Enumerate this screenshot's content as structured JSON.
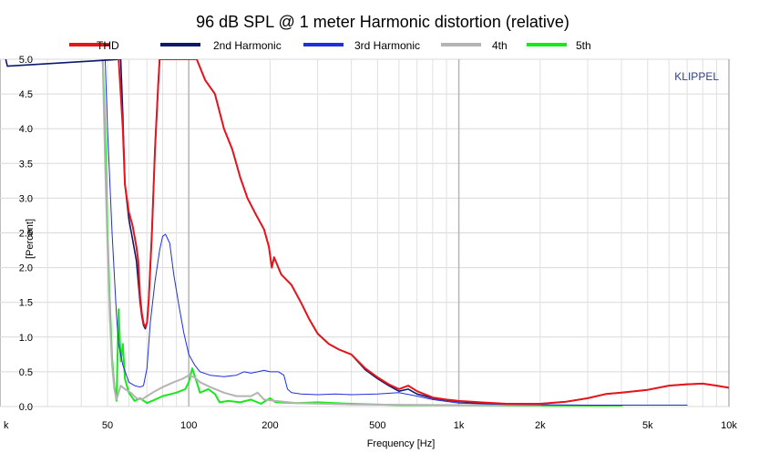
{
  "chart_data": {
    "type": "line",
    "title": "96 dB SPL @ 1 meter Harmonic distortion (relative)",
    "xlabel": "Frequency [Hz]",
    "ylabel": "[Percent]",
    "xscale": "log",
    "xlim": [
      20,
      10000
    ],
    "ylim": [
      0,
      5.0
    ],
    "grid": true,
    "legend_position": "top",
    "watermark": "KLIPPEL",
    "x_ticks": [
      {
        "value": 20,
        "label": "k"
      },
      {
        "value": 50,
        "label": "50"
      },
      {
        "value": 100,
        "label": "100"
      },
      {
        "value": 200,
        "label": "200"
      },
      {
        "value": 500,
        "label": "500"
      },
      {
        "value": 1000,
        "label": "1k"
      },
      {
        "value": 2000,
        "label": "2k"
      },
      {
        "value": 5000,
        "label": "5k"
      },
      {
        "value": 10000,
        "label": "10k"
      }
    ],
    "y_ticks": [
      {
        "value": 0,
        "label": "0.0"
      },
      {
        "value": 0.5,
        "label": "0.5"
      },
      {
        "value": 1.0,
        "label": "1.0"
      },
      {
        "value": 1.5,
        "label": "1.5"
      },
      {
        "value": 2.0,
        "label": "2.0"
      },
      {
        "value": 2.5,
        "label": "2.5"
      },
      {
        "value": 3.0,
        "label": "3.0"
      },
      {
        "value": 3.5,
        "label": "3.5"
      },
      {
        "value": 4.0,
        "label": "4.0"
      },
      {
        "value": 4.5,
        "label": "4.5"
      },
      {
        "value": 5.0,
        "label": "5.0"
      }
    ],
    "series": [
      {
        "name": "THD",
        "color": "#e8141c",
        "width": 2,
        "points": [
          [
            55,
            5.0
          ],
          [
            57,
            4.0
          ],
          [
            58,
            3.2
          ],
          [
            60,
            2.8
          ],
          [
            62,
            2.6
          ],
          [
            64,
            2.3
          ],
          [
            65,
            2.1
          ],
          [
            66,
            1.6
          ],
          [
            67,
            1.35
          ],
          [
            68,
            1.2
          ],
          [
            69,
            1.15
          ],
          [
            70,
            1.2
          ],
          [
            71,
            1.5
          ],
          [
            73,
            2.5
          ],
          [
            75,
            3.7
          ],
          [
            77,
            4.6
          ],
          [
            78,
            5.0
          ],
          [
            107,
            5.0
          ],
          [
            115,
            4.7
          ],
          [
            125,
            4.5
          ],
          [
            135,
            4.0
          ],
          [
            145,
            3.7
          ],
          [
            155,
            3.3
          ],
          [
            165,
            3.0
          ],
          [
            178,
            2.75
          ],
          [
            190,
            2.55
          ],
          [
            198,
            2.3
          ],
          [
            203,
            2.0
          ],
          [
            207,
            2.15
          ],
          [
            220,
            1.9
          ],
          [
            240,
            1.75
          ],
          [
            260,
            1.5
          ],
          [
            280,
            1.25
          ],
          [
            300,
            1.05
          ],
          [
            330,
            0.9
          ],
          [
            360,
            0.82
          ],
          [
            400,
            0.75
          ],
          [
            450,
            0.55
          ],
          [
            500,
            0.42
          ],
          [
            550,
            0.32
          ],
          [
            600,
            0.25
          ],
          [
            650,
            0.3
          ],
          [
            700,
            0.22
          ],
          [
            800,
            0.13
          ],
          [
            900,
            0.1
          ],
          [
            1000,
            0.08
          ],
          [
            1200,
            0.06
          ],
          [
            1500,
            0.04
          ],
          [
            2000,
            0.04
          ],
          [
            2500,
            0.07
          ],
          [
            3000,
            0.12
          ],
          [
            3500,
            0.18
          ],
          [
            4000,
            0.2
          ],
          [
            5000,
            0.24
          ],
          [
            6000,
            0.3
          ],
          [
            7000,
            0.32
          ],
          [
            8000,
            0.33
          ],
          [
            9000,
            0.3
          ],
          [
            10000,
            0.27
          ]
        ]
      },
      {
        "name": "2nd Harmonic",
        "color": "#0d1a6b",
        "width": 1.6,
        "points": [
          [
            21,
            5.0
          ],
          [
            21.3,
            4.9
          ],
          [
            56,
            5.0
          ],
          [
            57,
            4.2
          ],
          [
            58,
            3.2
          ],
          [
            60,
            2.7
          ],
          [
            62,
            2.4
          ],
          [
            64,
            2.1
          ],
          [
            66,
            1.5
          ],
          [
            67,
            1.3
          ],
          [
            68,
            1.17
          ],
          [
            69,
            1.12
          ],
          [
            70,
            1.2
          ],
          [
            71,
            1.5
          ],
          [
            73,
            2.5
          ],
          [
            75,
            3.7
          ],
          [
            77,
            4.6
          ],
          [
            78,
            5.0
          ],
          [
            107,
            5.0
          ],
          [
            115,
            4.7
          ],
          [
            125,
            4.5
          ],
          [
            135,
            4.0
          ],
          [
            145,
            3.7
          ],
          [
            155,
            3.3
          ],
          [
            165,
            3.0
          ],
          [
            178,
            2.75
          ],
          [
            190,
            2.55
          ],
          [
            198,
            2.3
          ],
          [
            203,
            2.0
          ],
          [
            207,
            2.15
          ],
          [
            220,
            1.9
          ],
          [
            240,
            1.75
          ],
          [
            260,
            1.5
          ],
          [
            280,
            1.25
          ],
          [
            300,
            1.05
          ],
          [
            330,
            0.9
          ],
          [
            360,
            0.82
          ],
          [
            400,
            0.75
          ],
          [
            450,
            0.53
          ],
          [
            500,
            0.4
          ],
          [
            550,
            0.3
          ],
          [
            600,
            0.22
          ],
          [
            650,
            0.25
          ],
          [
            700,
            0.18
          ],
          [
            800,
            0.12
          ],
          [
            900,
            0.09
          ],
          [
            1000,
            0.07
          ],
          [
            1200,
            0.05
          ],
          [
            1500,
            0.04
          ],
          [
            2000,
            0.04
          ],
          [
            2500,
            0.07
          ],
          [
            3000,
            0.12
          ],
          [
            3500,
            0.18
          ],
          [
            4000,
            0.2
          ],
          [
            5000,
            0.24
          ],
          [
            6000,
            0.3
          ],
          [
            7000,
            0.32
          ],
          [
            8000,
            0.33
          ],
          [
            9000,
            0.3
          ],
          [
            10000,
            0.27
          ]
        ]
      },
      {
        "name": "3rd Harmonic",
        "color": "#1f2fdc",
        "width": 1,
        "points": [
          [
            49,
            5.0
          ],
          [
            50,
            4.0
          ],
          [
            52,
            2.5
          ],
          [
            54,
            1.3
          ],
          [
            55,
            0.9
          ],
          [
            57,
            0.6
          ],
          [
            60,
            0.35
          ],
          [
            63,
            0.3
          ],
          [
            66,
            0.28
          ],
          [
            68,
            0.3
          ],
          [
            70,
            0.55
          ],
          [
            72,
            1.2
          ],
          [
            75,
            1.8
          ],
          [
            78,
            2.25
          ],
          [
            80,
            2.45
          ],
          [
            82,
            2.48
          ],
          [
            85,
            2.35
          ],
          [
            88,
            1.9
          ],
          [
            92,
            1.45
          ],
          [
            96,
            1.05
          ],
          [
            100,
            0.75
          ],
          [
            105,
            0.6
          ],
          [
            110,
            0.5
          ],
          [
            120,
            0.45
          ],
          [
            135,
            0.43
          ],
          [
            150,
            0.45
          ],
          [
            160,
            0.5
          ],
          [
            170,
            0.48
          ],
          [
            180,
            0.5
          ],
          [
            190,
            0.52
          ],
          [
            200,
            0.5
          ],
          [
            215,
            0.5
          ],
          [
            225,
            0.45
          ],
          [
            232,
            0.25
          ],
          [
            240,
            0.2
          ],
          [
            260,
            0.18
          ],
          [
            300,
            0.17
          ],
          [
            350,
            0.18
          ],
          [
            400,
            0.17
          ],
          [
            500,
            0.18
          ],
          [
            600,
            0.2
          ],
          [
            700,
            0.15
          ],
          [
            800,
            0.1
          ],
          [
            1000,
            0.05
          ],
          [
            1500,
            0.03
          ],
          [
            3000,
            0.02
          ],
          [
            5000,
            0.02
          ],
          [
            7000,
            0.02
          ]
        ]
      },
      {
        "name": "4th",
        "color": "#b4b4b4",
        "width": 2,
        "points": [
          [
            48,
            5.0
          ],
          [
            49,
            3.5
          ],
          [
            50,
            2.3
          ],
          [
            51,
            1.3
          ],
          [
            52,
            0.6
          ],
          [
            53,
            0.25
          ],
          [
            54,
            0.1
          ],
          [
            56,
            0.3
          ],
          [
            58,
            0.25
          ],
          [
            61,
            0.2
          ],
          [
            64,
            0.12
          ],
          [
            67,
            0.1
          ],
          [
            70,
            0.15
          ],
          [
            75,
            0.22
          ],
          [
            80,
            0.28
          ],
          [
            88,
            0.35
          ],
          [
            95,
            0.4
          ],
          [
            100,
            0.45
          ],
          [
            105,
            0.42
          ],
          [
            110,
            0.35
          ],
          [
            120,
            0.28
          ],
          [
            135,
            0.2
          ],
          [
            150,
            0.15
          ],
          [
            170,
            0.15
          ],
          [
            180,
            0.2
          ],
          [
            190,
            0.1
          ],
          [
            210,
            0.08
          ],
          [
            250,
            0.05
          ],
          [
            400,
            0.03
          ],
          [
            1000,
            0.02
          ],
          [
            2000,
            0.02
          ]
        ]
      },
      {
        "name": "5th",
        "color": "#19e81c",
        "width": 2,
        "points": [
          [
            48,
            5.0
          ],
          [
            49,
            4.0
          ],
          [
            50,
            2.5
          ],
          [
            51,
            1.5
          ],
          [
            52,
            0.7
          ],
          [
            53,
            0.3
          ],
          [
            54,
            0.08
          ],
          [
            55,
            1.4
          ],
          [
            56,
            0.65
          ],
          [
            57,
            0.9
          ],
          [
            58,
            0.4
          ],
          [
            60,
            0.2
          ],
          [
            63,
            0.08
          ],
          [
            66,
            0.12
          ],
          [
            70,
            0.05
          ],
          [
            75,
            0.1
          ],
          [
            80,
            0.15
          ],
          [
            90,
            0.2
          ],
          [
            97,
            0.25
          ],
          [
            100,
            0.35
          ],
          [
            103,
            0.55
          ],
          [
            106,
            0.4
          ],
          [
            110,
            0.2
          ],
          [
            118,
            0.25
          ],
          [
            125,
            0.18
          ],
          [
            130,
            0.06
          ],
          [
            140,
            0.08
          ],
          [
            155,
            0.06
          ],
          [
            170,
            0.1
          ],
          [
            185,
            0.04
          ],
          [
            200,
            0.12
          ],
          [
            210,
            0.06
          ],
          [
            250,
            0.05
          ],
          [
            300,
            0.06
          ],
          [
            400,
            0.04
          ],
          [
            600,
            0.02
          ],
          [
            1000,
            0.02
          ],
          [
            2000,
            0.01
          ],
          [
            4000,
            0.01
          ]
        ]
      }
    ]
  }
}
